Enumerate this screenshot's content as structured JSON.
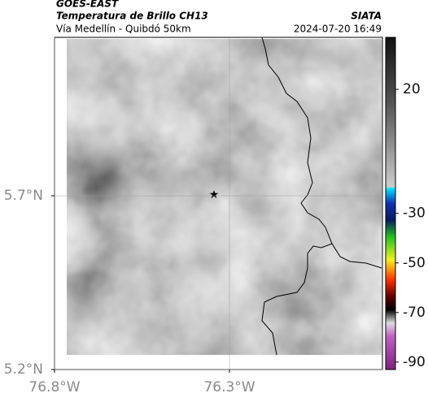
{
  "header": {
    "source": "GOES-EAST",
    "title": "Temperatura de Brillo CH13",
    "subtitle": "Vía Medellín - Quibdó 50km",
    "agency": "SIATA",
    "timestamp": "2024-07-20 16:49"
  },
  "map": {
    "xlim": [
      -76.8,
      -75.863
    ],
    "ylim": [
      5.2,
      6.156
    ],
    "xticks": [
      {
        "value": -76.8,
        "label": "76.8°W"
      },
      {
        "value": -76.3,
        "label": "76.3°W"
      }
    ],
    "yticks": [
      {
        "value": 5.2,
        "label": "5.2°N"
      },
      {
        "value": 5.7,
        "label": "5.7°N"
      }
    ]
  },
  "colorbar": {
    "lim": [
      -93,
      41
    ],
    "ticks": [
      20,
      -30,
      -50,
      -70,
      -90
    ]
  }
}
